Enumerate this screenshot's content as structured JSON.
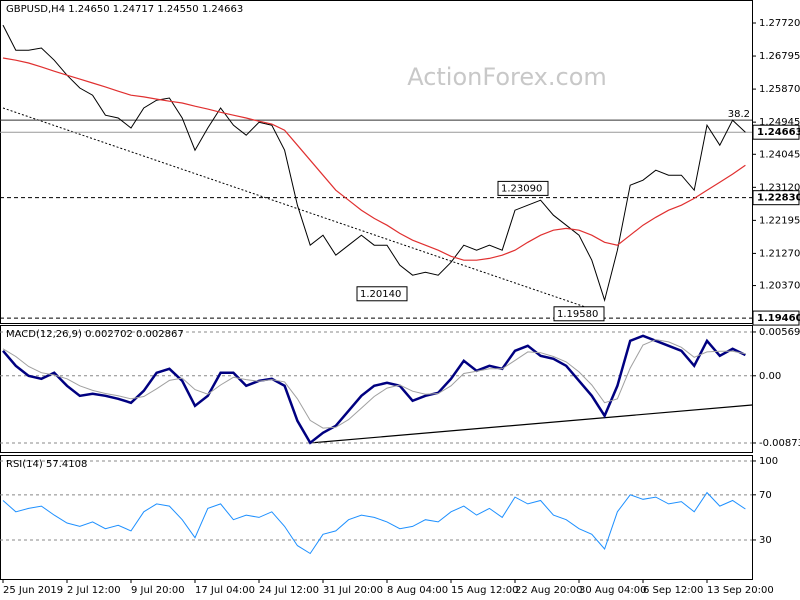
{
  "watermark": "ActionForex.com",
  "chart_data": [
    {
      "type": "line",
      "title": "GBPUSD,H4  1.24650 1.24717 1.24550 1.24663",
      "ylim": [
        1.1935,
        1.2828
      ],
      "yticks": [
        {
          "value": 1.2772,
          "label": "1.27720"
        },
        1.26795,
        {
          "value": 1.2587,
          "label": "1.25870"
        },
        {
          "value": 1.24945,
          "label": "1.24945"
        },
        1.24045,
        {
          "value": 1.2312,
          "label": "1.23120"
        },
        1.22195,
        {
          "value": 1.2127,
          "label": "1.21270"
        },
        {
          "value": 1.2037,
          "label": "1.20370"
        }
      ],
      "series": [
        {
          "color": "#000000",
          "values": [
            1.2766,
            1.2696,
            1.2696,
            1.2702,
            1.2668,
            1.2626,
            1.259,
            1.257,
            1.2514,
            1.2506,
            1.2478,
            1.2534,
            1.2556,
            1.2562,
            1.2506,
            1.2416,
            1.2478,
            1.2534,
            1.2486,
            1.2458,
            1.2494,
            1.2486,
            1.2416,
            1.2262,
            1.215,
            1.2178,
            1.2122,
            1.215,
            1.2178,
            1.215,
            1.215,
            1.2094,
            1.2066,
            1.2074,
            1.2066,
            1.2102,
            1.215,
            1.2136,
            1.215,
            1.2136,
            1.2248,
            1.2262,
            1.2276,
            1.2234,
            1.2206,
            1.2178,
            1.2108,
            1.1996,
            1.2136,
            1.2318,
            1.2332,
            1.236,
            1.2346,
            1.2346,
            1.2304,
            1.2486,
            1.243,
            1.25,
            1.2466
          ]
        },
        {
          "color": "#e03030",
          "values": [
            1.2674,
            1.2668,
            1.266,
            1.2649,
            1.2637,
            1.2626,
            1.2615,
            1.2604,
            1.2593,
            1.2581,
            1.257,
            1.2565,
            1.2559,
            1.2553,
            1.2548,
            1.2539,
            1.2531,
            1.2522,
            1.2514,
            1.2506,
            1.2497,
            1.2489,
            1.2472,
            1.243,
            1.2388,
            1.2346,
            1.2304,
            1.2276,
            1.2248,
            1.2225,
            1.2206,
            1.2183,
            1.2164,
            1.215,
            1.2136,
            1.2119,
            1.2108,
            1.2108,
            1.2113,
            1.2122,
            1.2136,
            1.2158,
            1.2178,
            1.2192,
            1.2197,
            1.2192,
            1.2178,
            1.2158,
            1.215,
            1.2178,
            1.2206,
            1.2228,
            1.2248,
            1.2262,
            1.2281,
            1.2304,
            1.2326,
            1.2349,
            1.2374
          ]
        }
      ],
      "price_lines": [
        {
          "value": 1.24663,
          "label": "1.24663",
          "style": "solid"
        },
        {
          "value": 1.2283,
          "label": "1.22830",
          "style": "dashed"
        },
        {
          "value": 1.1946,
          "label": "1.19460",
          "style": "dashed"
        }
      ],
      "levels": [
        {
          "value": 1.25,
          "label": "38.2"
        }
      ],
      "annotations": [
        {
          "value": 1.2309,
          "label": "1.23090"
        },
        {
          "value": 1.2014,
          "label": "1.20140"
        },
        {
          "value": 1.1958,
          "label": "1.19580"
        }
      ]
    },
    {
      "type": "line",
      "title": "MACD(12,26,9) 0.002702 0.002867",
      "ylim": [
        -0.00978,
        0.00647
      ],
      "yticks": [
        0.005694,
        {
          "value": 0,
          "label": "0.00"
        },
        -0.008737
      ],
      "series": [
        {
          "color": "#000080",
          "values": [
            0.00325,
            0.0013,
            0,
            -0.00039,
            0.00039,
            -0.0013,
            -0.0026,
            -0.00234,
            -0.0026,
            -0.00299,
            -0.00351,
            -0.00195,
            0.00039,
            0.00091,
            -0.00065,
            -0.0039,
            -0.0026,
            0.00039,
            0.00039,
            -0.0013,
            -0.00065,
            -0.00039,
            -0.0013,
            -0.00585,
            -0.00871,
            -0.00741,
            -0.0065,
            -0.00455,
            -0.0026,
            -0.0013,
            -0.00091,
            -0.0013,
            -0.00325,
            -0.0026,
            -0.00221,
            -0.00039,
            0.00195,
            0.00065,
            0.0013,
            0.00091,
            0.00325,
            0.0039,
            0.0026,
            0.00221,
            0.0013,
            -0.00065,
            -0.0026,
            -0.0052,
            -0.0013,
            0.00455,
            0.0052,
            0.00455,
            0.0039,
            0.00325,
            0.0013,
            0.00455,
            0.0026,
            0.00351,
            0.002702
          ]
        },
        {
          "color": "#a0a0a0",
          "values": [
            0.0035,
            0.0025,
            0.0012,
            0.0004,
            0.0001,
            -0.0004,
            -0.0013,
            -0.0019,
            -0.0023,
            -0.0026,
            -0.003,
            -0.0027,
            -0.0017,
            -0.0006,
            -0.0003,
            -0.0018,
            -0.0024,
            -0.0012,
            -0.0002,
            -0.0005,
            -0.0007,
            -0.0005,
            -0.0008,
            -0.003,
            -0.0058,
            -0.0068,
            -0.0067,
            -0.0057,
            -0.0042,
            -0.0027,
            -0.0016,
            -0.0012,
            -0.002,
            -0.0024,
            -0.0023,
            -0.0013,
            0.0003,
            0.0006,
            0.0009,
            0.0009,
            0.002,
            0.0031,
            0.003,
            0.0025,
            0.0018,
            0.0005,
            -0.0012,
            -0.0035,
            -0.003,
            0.001,
            0.004,
            0.0047,
            0.0044,
            0.0037,
            0.0024,
            0.0031,
            0.0032,
            0.0032,
            0.002867
          ]
        }
      ]
    },
    {
      "type": "line",
      "title": "RSI(14) 57.4108",
      "ylim": [
        -3.7,
        104.4
      ],
      "yticks": [
        100,
        70,
        30
      ],
      "categories": [
        "25 Jun 2019",
        null,
        null,
        null,
        null,
        "2 Jul 12:00",
        null,
        null,
        null,
        null,
        "9 Jul 20:00",
        null,
        null,
        null,
        null,
        "17 Jul 04:00",
        null,
        null,
        null,
        null,
        "24 Jul 12:00",
        null,
        null,
        null,
        null,
        "31 Jul 20:00",
        null,
        null,
        null,
        null,
        "8 Aug 04:00",
        null,
        null,
        null,
        null,
        "15 Aug 12:00",
        null,
        null,
        null,
        null,
        "22 Aug 20:00",
        null,
        null,
        null,
        null,
        "30 Aug 04:00",
        null,
        null,
        null,
        null,
        "6 Sep 12:00",
        null,
        null,
        null,
        null,
        "13 Sep 20:00",
        null,
        null,
        null
      ],
      "series": [
        {
          "color": "#1e90ff",
          "values": [
            65,
            55,
            58,
            60,
            52,
            45,
            42,
            46,
            40,
            43,
            38,
            55,
            62,
            60,
            48,
            32,
            58,
            62,
            48,
            52,
            50,
            55,
            42,
            25,
            18,
            35,
            38,
            48,
            52,
            50,
            46,
            40,
            42,
            48,
            46,
            55,
            60,
            52,
            58,
            50,
            68,
            62,
            65,
            52,
            48,
            40,
            35,
            22,
            55,
            70,
            66,
            68,
            62,
            64,
            55,
            72,
            60,
            65,
            57.4108
          ]
        }
      ]
    }
  ]
}
